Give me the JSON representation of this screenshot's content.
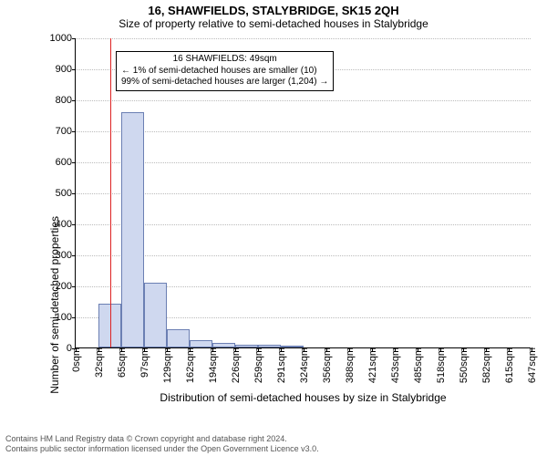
{
  "header": {
    "title": "16, SHAWFIELDS, STALYBRIDGE, SK15 2QH",
    "subtitle": "Size of property relative to semi-detached houses in Stalybridge"
  },
  "chart": {
    "type": "histogram",
    "ylabel": "Number of semi-detached properties",
    "xlabel": "Distribution of semi-detached houses by size in Stalybridge",
    "ylim": [
      0,
      1000
    ],
    "ytick_step": 100,
    "xtick_step": 32.35,
    "xstart": 0,
    "xunit": "sqm",
    "xtick_count": 21,
    "bar_fill": "#cfd8ef",
    "bar_stroke": "#6b7fb3",
    "grid_color": "#bbbbbb",
    "background": "#ffffff",
    "marker_line_color": "#d22",
    "marker_x": 49,
    "bin_width": 32.35,
    "bars": [
      {
        "x0": 32.35,
        "value": 140
      },
      {
        "x0": 64.7,
        "value": 760
      },
      {
        "x0": 97.05,
        "value": 210
      },
      {
        "x0": 129.4,
        "value": 60
      },
      {
        "x0": 161.75,
        "value": 25
      },
      {
        "x0": 194.1,
        "value": 15
      },
      {
        "x0": 226.45,
        "value": 10
      },
      {
        "x0": 258.8,
        "value": 8
      },
      {
        "x0": 291.15,
        "value": 6
      }
    ],
    "note": {
      "line1": "16 SHAWFIELDS: 49sqm",
      "line2": "← 1% of semi-detached houses are smaller (10)",
      "line3": "99% of semi-detached houses are larger (1,204) →"
    }
  },
  "footer": {
    "line1": "Contains HM Land Registry data © Crown copyright and database right 2024.",
    "line2": "Contains public sector information licensed under the Open Government Licence v3.0."
  }
}
